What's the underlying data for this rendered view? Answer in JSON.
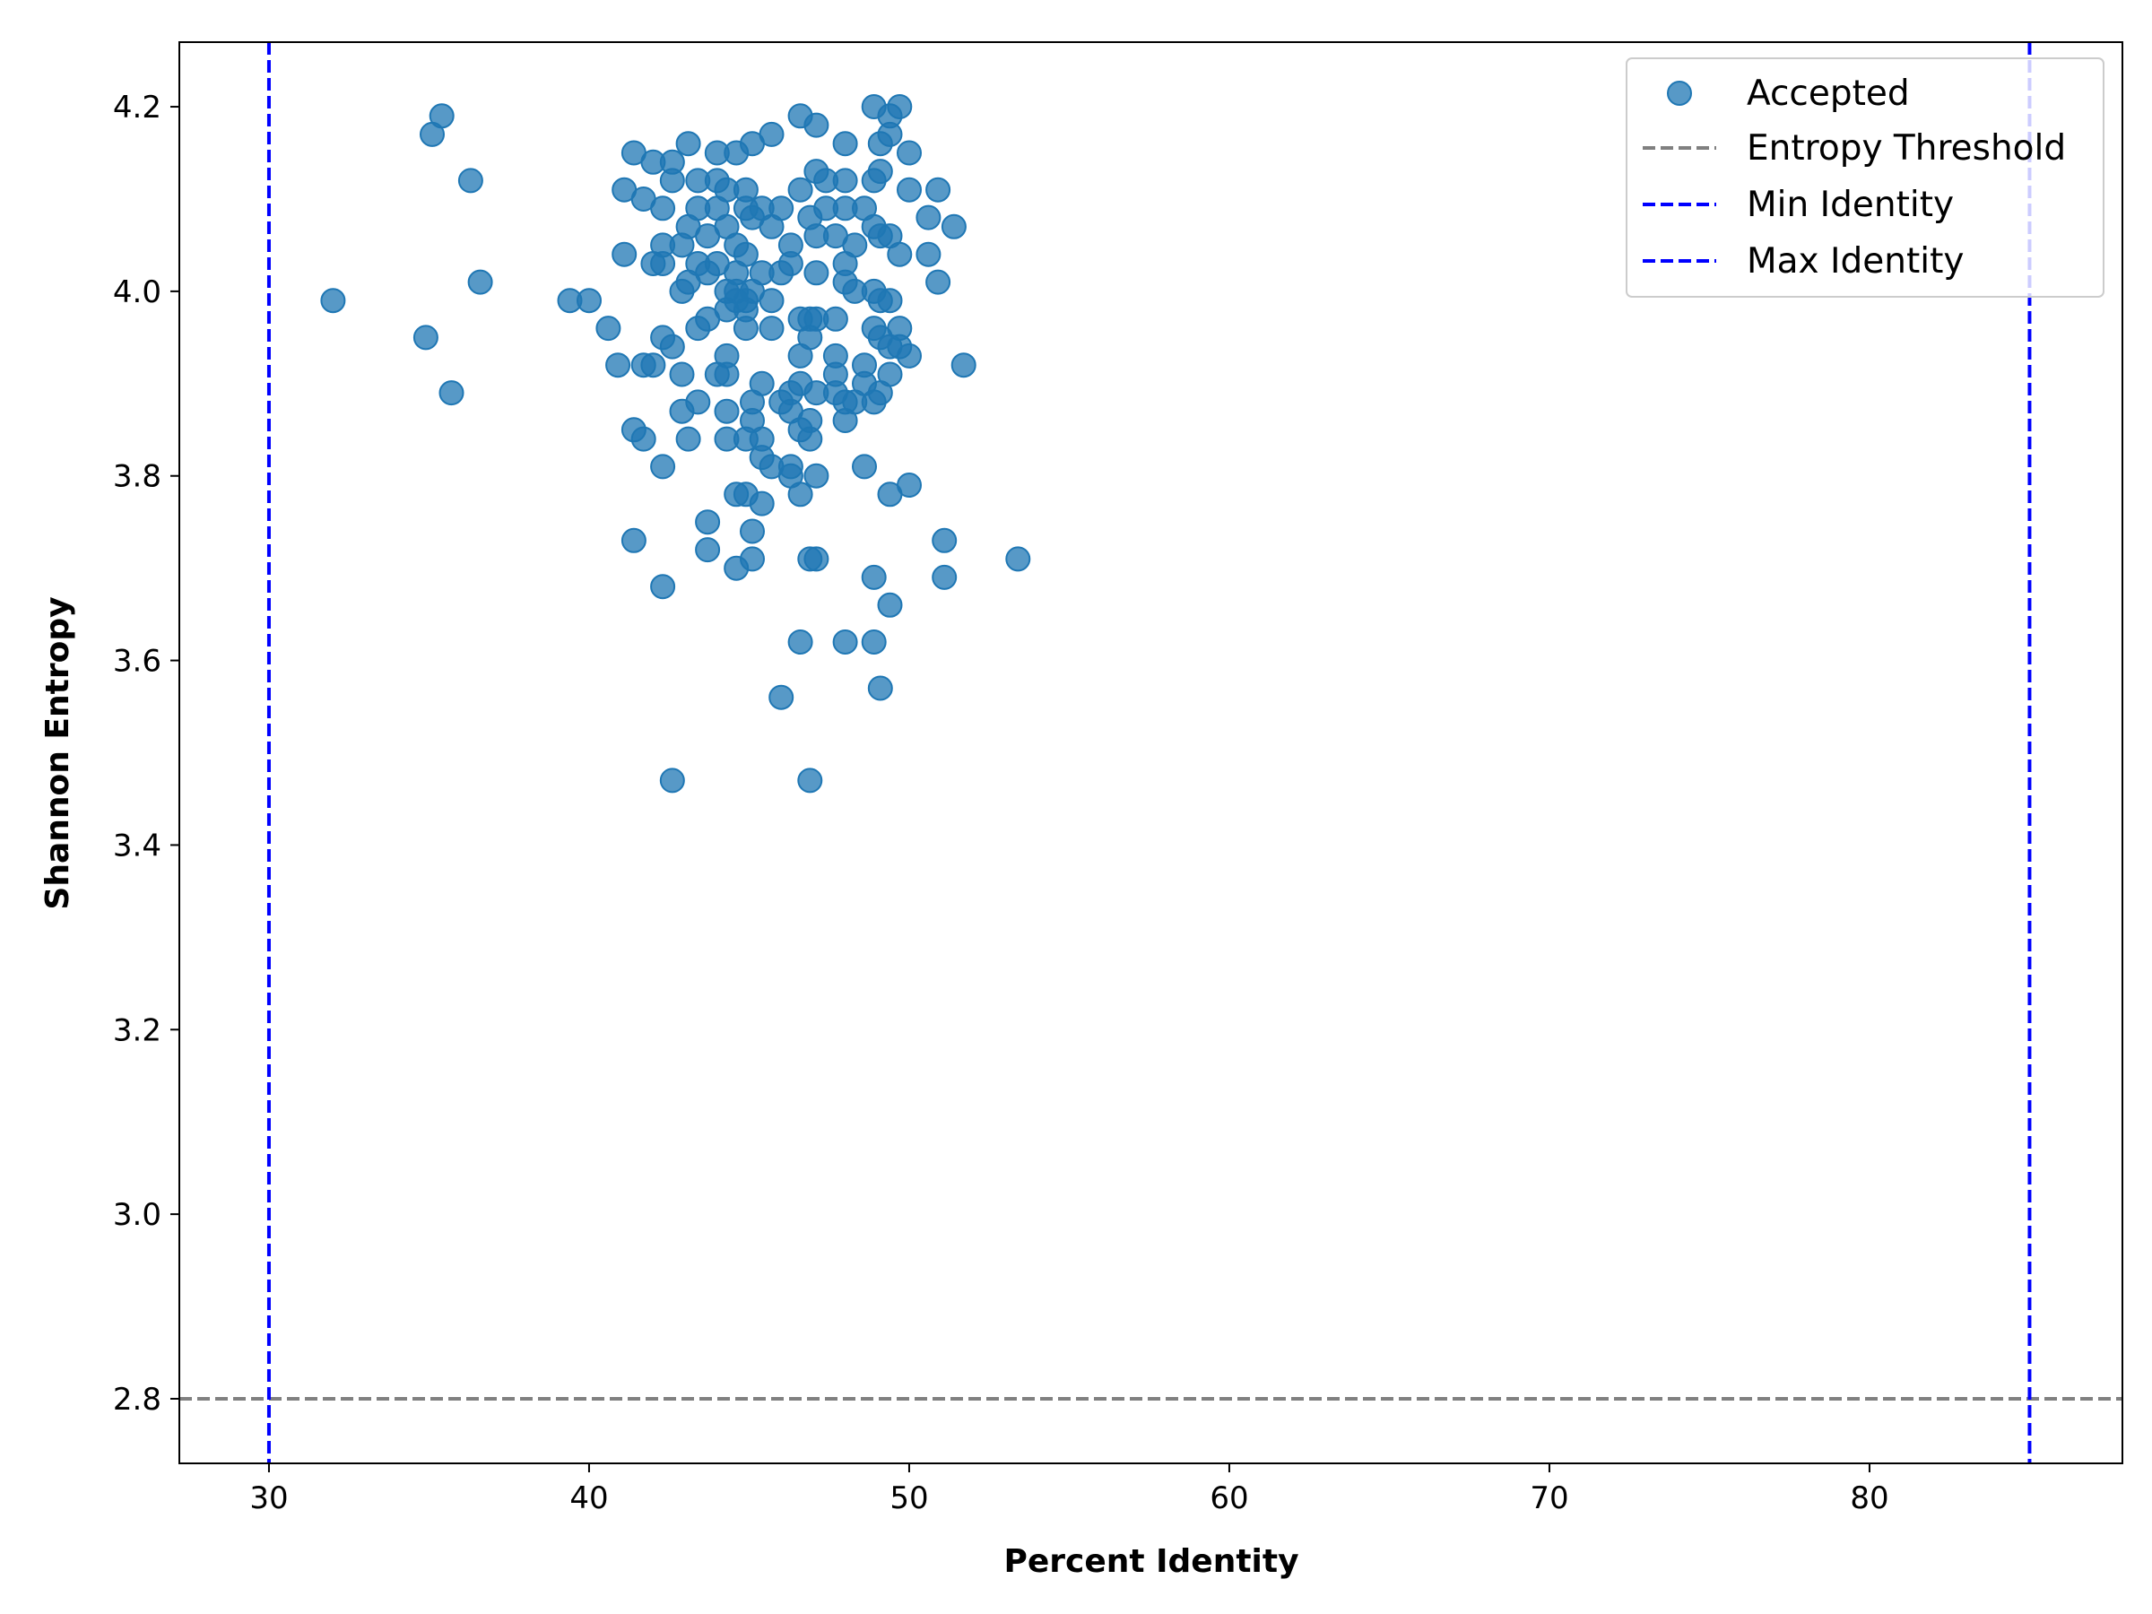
{
  "chart_data": {
    "type": "scatter",
    "title": "",
    "xlabel": "Percent Identity",
    "ylabel": "Shannon Entropy",
    "xlim": [
      27.2,
      87.9
    ],
    "ylim": [
      2.73,
      4.27
    ],
    "xticks": [
      30,
      40,
      50,
      60,
      70,
      80
    ],
    "yticks": [
      2.8,
      3.0,
      3.2,
      3.4,
      3.6,
      3.8,
      4.0,
      4.2
    ],
    "grid": false,
    "legend_position": "top-right",
    "colors": {
      "points": "#1f77b4",
      "threshold": "#808080",
      "identity": "#0000ff"
    },
    "series": [
      {
        "name": "Accepted",
        "kind": "scatter",
        "points": [
          [
            32.0,
            3.99
          ],
          [
            34.9,
            3.95
          ],
          [
            35.1,
            4.17
          ],
          [
            35.4,
            4.19
          ],
          [
            35.7,
            3.89
          ],
          [
            36.3,
            4.12
          ],
          [
            36.6,
            4.01
          ],
          [
            39.4,
            3.99
          ],
          [
            40.0,
            3.99
          ],
          [
            40.6,
            3.96
          ],
          [
            40.9,
            3.92
          ],
          [
            41.1,
            4.04
          ],
          [
            41.1,
            4.11
          ],
          [
            41.4,
            4.15
          ],
          [
            41.4,
            3.85
          ],
          [
            41.4,
            3.73
          ],
          [
            41.7,
            4.1
          ],
          [
            41.7,
            3.92
          ],
          [
            41.7,
            3.84
          ],
          [
            42.0,
            4.14
          ],
          [
            42.0,
            4.03
          ],
          [
            42.0,
            3.92
          ],
          [
            42.3,
            4.09
          ],
          [
            42.3,
            4.05
          ],
          [
            42.3,
            4.03
          ],
          [
            42.3,
            3.95
          ],
          [
            42.3,
            3.81
          ],
          [
            42.3,
            3.68
          ],
          [
            42.6,
            4.14
          ],
          [
            42.6,
            4.12
          ],
          [
            42.6,
            3.94
          ],
          [
            42.6,
            3.47
          ],
          [
            42.9,
            4.05
          ],
          [
            42.9,
            4.0
          ],
          [
            42.9,
            3.91
          ],
          [
            42.9,
            3.87
          ],
          [
            43.1,
            4.16
          ],
          [
            43.1,
            4.07
          ],
          [
            43.1,
            4.01
          ],
          [
            43.1,
            3.84
          ],
          [
            43.4,
            4.12
          ],
          [
            43.4,
            4.09
          ],
          [
            43.4,
            4.03
          ],
          [
            43.4,
            3.96
          ],
          [
            43.4,
            3.88
          ],
          [
            43.7,
            4.06
          ],
          [
            43.7,
            4.02
          ],
          [
            43.7,
            3.97
          ],
          [
            43.7,
            3.75
          ],
          [
            43.7,
            3.72
          ],
          [
            44.0,
            4.15
          ],
          [
            44.0,
            4.12
          ],
          [
            44.0,
            4.09
          ],
          [
            44.0,
            4.03
          ],
          [
            44.0,
            3.91
          ],
          [
            44.3,
            4.11
          ],
          [
            44.3,
            4.07
          ],
          [
            44.3,
            4.0
          ],
          [
            44.3,
            3.98
          ],
          [
            44.3,
            3.93
          ],
          [
            44.3,
            3.91
          ],
          [
            44.3,
            3.87
          ],
          [
            44.3,
            3.84
          ],
          [
            44.6,
            4.15
          ],
          [
            44.6,
            4.05
          ],
          [
            44.6,
            4.02
          ],
          [
            44.6,
            4.0
          ],
          [
            44.6,
            3.99
          ],
          [
            44.6,
            3.78
          ],
          [
            44.6,
            3.7
          ],
          [
            44.9,
            4.11
          ],
          [
            44.9,
            4.09
          ],
          [
            44.9,
            4.04
          ],
          [
            44.9,
            3.99
          ],
          [
            44.9,
            3.98
          ],
          [
            44.9,
            3.96
          ],
          [
            44.9,
            3.84
          ],
          [
            44.9,
            3.78
          ],
          [
            45.1,
            4.16
          ],
          [
            45.1,
            4.08
          ],
          [
            45.1,
            4.0
          ],
          [
            45.1,
            3.88
          ],
          [
            45.1,
            3.86
          ],
          [
            45.1,
            3.74
          ],
          [
            45.1,
            3.71
          ],
          [
            45.4,
            4.09
          ],
          [
            45.4,
            4.02
          ],
          [
            45.4,
            3.9
          ],
          [
            45.4,
            3.84
          ],
          [
            45.4,
            3.82
          ],
          [
            45.4,
            3.77
          ],
          [
            45.7,
            4.17
          ],
          [
            45.7,
            4.07
          ],
          [
            45.7,
            3.99
          ],
          [
            45.7,
            3.96
          ],
          [
            45.7,
            3.81
          ],
          [
            46.0,
            4.09
          ],
          [
            46.0,
            4.02
          ],
          [
            46.0,
            3.88
          ],
          [
            46.0,
            3.56
          ],
          [
            46.3,
            4.05
          ],
          [
            46.3,
            4.03
          ],
          [
            46.3,
            3.89
          ],
          [
            46.3,
            3.87
          ],
          [
            46.3,
            3.81
          ],
          [
            46.3,
            3.8
          ],
          [
            46.6,
            4.19
          ],
          [
            46.6,
            4.11
          ],
          [
            46.6,
            3.97
          ],
          [
            46.6,
            3.93
          ],
          [
            46.6,
            3.9
          ],
          [
            46.6,
            3.85
          ],
          [
            46.6,
            3.78
          ],
          [
            46.6,
            3.62
          ],
          [
            46.9,
            4.08
          ],
          [
            46.9,
            3.97
          ],
          [
            46.9,
            3.95
          ],
          [
            46.9,
            3.86
          ],
          [
            46.9,
            3.84
          ],
          [
            46.9,
            3.71
          ],
          [
            46.9,
            3.47
          ],
          [
            47.1,
            4.18
          ],
          [
            47.1,
            4.13
          ],
          [
            47.1,
            4.06
          ],
          [
            47.1,
            4.02
          ],
          [
            47.1,
            3.97
          ],
          [
            47.1,
            3.89
          ],
          [
            47.1,
            3.8
          ],
          [
            47.1,
            3.71
          ],
          [
            47.4,
            4.12
          ],
          [
            47.4,
            4.09
          ],
          [
            47.7,
            4.06
          ],
          [
            47.7,
            3.97
          ],
          [
            47.7,
            3.93
          ],
          [
            47.7,
            3.91
          ],
          [
            47.7,
            3.89
          ],
          [
            48.0,
            4.16
          ],
          [
            48.0,
            4.12
          ],
          [
            48.0,
            4.09
          ],
          [
            48.0,
            4.03
          ],
          [
            48.0,
            4.01
          ],
          [
            48.0,
            3.88
          ],
          [
            48.0,
            3.86
          ],
          [
            48.0,
            3.62
          ],
          [
            48.3,
            4.05
          ],
          [
            48.3,
            4.0
          ],
          [
            48.3,
            3.88
          ],
          [
            48.6,
            4.09
          ],
          [
            48.6,
            3.92
          ],
          [
            48.6,
            3.9
          ],
          [
            48.6,
            3.81
          ],
          [
            48.9,
            4.2
          ],
          [
            48.9,
            4.12
          ],
          [
            48.9,
            4.07
          ],
          [
            48.9,
            4.0
          ],
          [
            48.9,
            3.96
          ],
          [
            48.9,
            3.88
          ],
          [
            48.9,
            3.69
          ],
          [
            48.9,
            3.62
          ],
          [
            49.1,
            4.16
          ],
          [
            49.1,
            4.13
          ],
          [
            49.1,
            4.06
          ],
          [
            49.1,
            3.99
          ],
          [
            49.1,
            3.95
          ],
          [
            49.1,
            3.89
          ],
          [
            49.1,
            3.57
          ],
          [
            49.4,
            4.19
          ],
          [
            49.4,
            4.17
          ],
          [
            49.4,
            4.06
          ],
          [
            49.4,
            3.99
          ],
          [
            49.4,
            3.94
          ],
          [
            49.4,
            3.91
          ],
          [
            49.4,
            3.78
          ],
          [
            49.4,
            3.66
          ],
          [
            49.7,
            4.2
          ],
          [
            49.7,
            4.04
          ],
          [
            49.7,
            3.96
          ],
          [
            49.7,
            3.94
          ],
          [
            50.0,
            4.15
          ],
          [
            50.0,
            4.11
          ],
          [
            50.0,
            3.93
          ],
          [
            50.0,
            3.79
          ],
          [
            50.6,
            4.08
          ],
          [
            50.6,
            4.04
          ],
          [
            50.9,
            4.11
          ],
          [
            50.9,
            4.01
          ],
          [
            51.1,
            3.73
          ],
          [
            51.1,
            3.69
          ],
          [
            51.4,
            4.07
          ],
          [
            51.7,
            3.92
          ],
          [
            53.4,
            3.71
          ]
        ]
      },
      {
        "name": "Entropy Threshold",
        "kind": "hline",
        "y": 2.8
      },
      {
        "name": "Min Identity",
        "kind": "vline",
        "x": 30
      },
      {
        "name": "Max Identity",
        "kind": "vline",
        "x": 85
      }
    ]
  }
}
